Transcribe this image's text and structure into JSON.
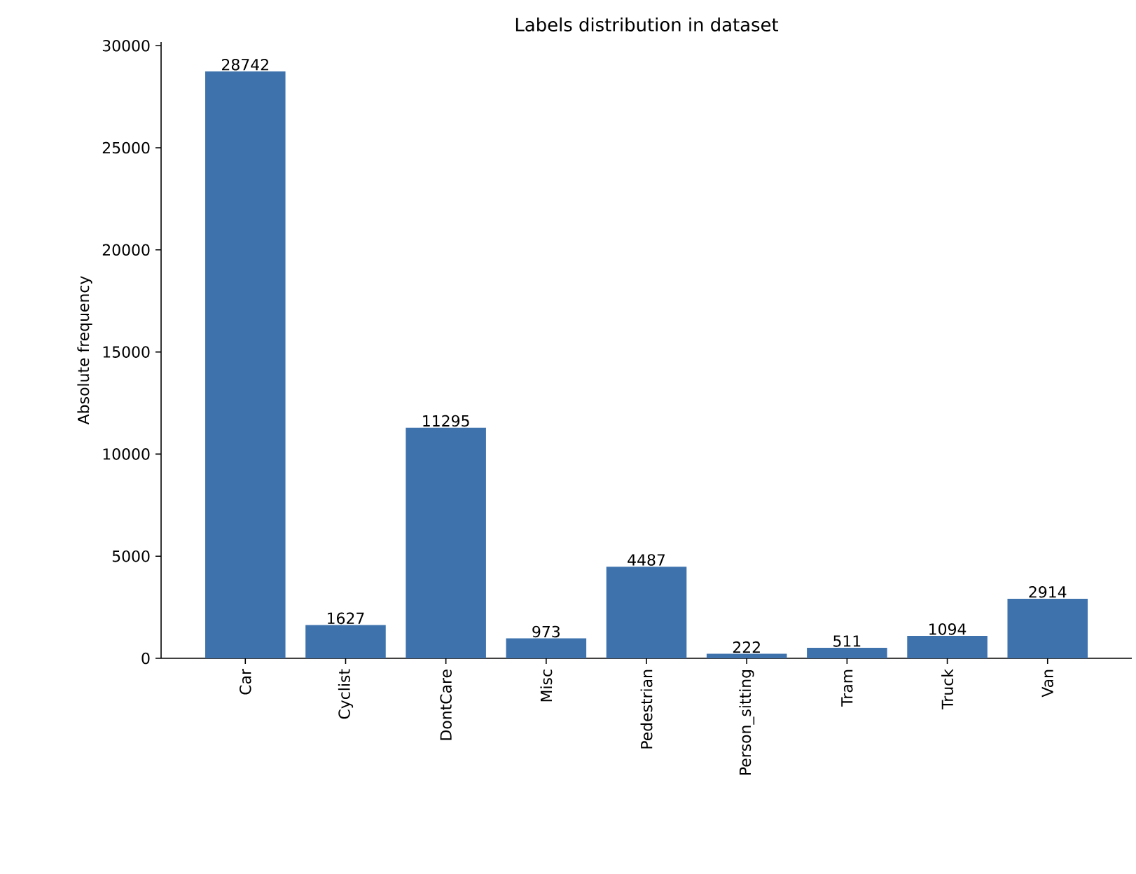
{
  "chart_data": {
    "type": "bar",
    "title": "Labels distribution in dataset",
    "ylabel": "Absolute frequency",
    "categories": [
      "Car",
      "Cyclist",
      "DontCare",
      "Misc",
      "Pedestrian",
      "Person_sitting",
      "Tram",
      "Truck",
      "Van"
    ],
    "values": [
      28742,
      1627,
      11295,
      973,
      4487,
      222,
      511,
      1094,
      2914
    ],
    "color": "#3d72ad",
    "ylim": [
      0,
      30180
    ],
    "yticks": [
      0,
      5000,
      10000,
      15000,
      20000,
      25000,
      30000
    ],
    "data_labels": true
  }
}
